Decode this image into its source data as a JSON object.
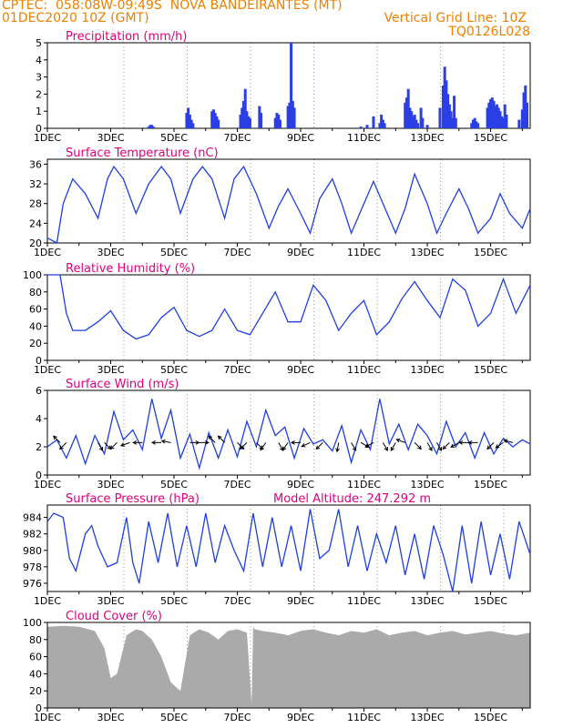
{
  "header": {
    "line1_left": "CPTEC:  058:08W-09:49S  NOVA BANDEIRANTES (MT)",
    "line2_left": "01DEC2020 10Z (GMT)",
    "line2_right": "Vertical Grid Line: 10Z",
    "line3_right": "TQ0126L028"
  },
  "colors": {
    "title": "#e0007a",
    "header": "#f08000",
    "series": "#1f3fe0",
    "bars": "#2b3fe6",
    "cloud": "#aaaaaa"
  },
  "x_ticks": [
    "1DEC",
    "3DEC",
    "5DEC",
    "7DEC",
    "9DEC",
    "11DEC",
    "13DEC",
    "15DEC"
  ],
  "chart_data": [
    {
      "type": "bar",
      "title": "Precipitation (mm/h)",
      "ylim": [
        0,
        5
      ],
      "yticks": [
        "0",
        "1",
        "2",
        "3",
        "4",
        "5"
      ],
      "x_range_days": [
        0,
        15.25
      ],
      "x": [
        3.2,
        3.25,
        3.3,
        3.35,
        4.4,
        4.45,
        4.5,
        4.55,
        4.6,
        5.2,
        5.25,
        5.3,
        5.35,
        5.4,
        6.1,
        6.15,
        6.2,
        6.25,
        6.3,
        6.35,
        6.4,
        6.7,
        6.75,
        7.2,
        7.25,
        7.3,
        7.35,
        7.6,
        7.65,
        7.7,
        7.75,
        7.8,
        9.9,
        10.1,
        10.3,
        10.5,
        10.55,
        10.6,
        10.65,
        11.3,
        11.35,
        11.4,
        11.45,
        11.5,
        11.55,
        11.6,
        11.65,
        11.7,
        11.8,
        11.85,
        12.0,
        12.4,
        12.5,
        12.55,
        12.6,
        12.65,
        12.7,
        12.75,
        12.8,
        12.85,
        12.9,
        13.4,
        13.45,
        13.5,
        13.55,
        13.6,
        13.9,
        13.95,
        14.0,
        14.05,
        14.1,
        14.15,
        14.2,
        14.25,
        14.3,
        14.35,
        14.4,
        14.45,
        14.5,
        14.9,
        15.0,
        15.05,
        15.1,
        15.15
      ],
      "values": [
        0.1,
        0.2,
        0.2,
        0.1,
        0.9,
        1.2,
        0.8,
        0.5,
        0.3,
        1.0,
        1.1,
        0.9,
        0.7,
        0.5,
        0.8,
        1.2,
        1.6,
        2.3,
        1.0,
        0.7,
        0.6,
        1.3,
        0.9,
        0.6,
        0.9,
        0.8,
        0.5,
        1.3,
        1.5,
        5.0,
        1.6,
        1.2,
        0.1,
        0.2,
        0.7,
        0.3,
        0.8,
        0.5,
        0.3,
        1.5,
        1.8,
        2.3,
        1.2,
        1.0,
        0.7,
        0.8,
        0.5,
        0.3,
        1.2,
        0.6,
        0.2,
        1.2,
        2.5,
        3.6,
        2.8,
        2.0,
        1.4,
        1.0,
        0.6,
        1.9,
        0.6,
        0.3,
        0.5,
        0.6,
        0.4,
        0.3,
        1.2,
        1.5,
        1.7,
        1.8,
        1.6,
        1.3,
        1.4,
        1.2,
        1.0,
        0.7,
        0.6,
        1.4,
        0.8,
        0.5,
        1.1,
        2.1,
        2.5,
        1.5
      ]
    },
    {
      "type": "line",
      "title": "Surface Temperature (nC)",
      "ylim": [
        20,
        37
      ],
      "yticks": [
        "20",
        "24",
        "28",
        "32",
        "36"
      ],
      "x": [
        0,
        0.3,
        0.5,
        0.8,
        1.2,
        1.6,
        1.9,
        2.1,
        2.4,
        2.8,
        3.2,
        3.6,
        3.9,
        4.2,
        4.6,
        4.9,
        5.2,
        5.6,
        5.9,
        6.2,
        6.6,
        7.0,
        7.3,
        7.6,
        8.0,
        8.3,
        8.6,
        9.0,
        9.3,
        9.6,
        10.0,
        10.3,
        10.6,
        11.0,
        11.3,
        11.6,
        12.0,
        12.3,
        12.6,
        13.0,
        13.3,
        13.6,
        14.0,
        14.3,
        14.6,
        15.0,
        15.25
      ],
      "values": [
        21,
        20,
        28,
        33,
        30,
        25,
        33,
        35.5,
        33,
        26,
        32,
        35.5,
        33,
        26,
        33,
        35.5,
        33,
        25,
        33,
        35.5,
        30,
        23,
        27.5,
        31,
        26,
        22,
        29,
        33,
        28,
        22,
        28,
        32.5,
        28,
        22,
        27,
        34,
        28,
        22,
        26,
        31,
        27,
        22,
        25,
        30,
        26,
        23,
        27
      ]
    },
    {
      "type": "line",
      "title": "Relative Humidity (%)",
      "ylim": [
        0,
        100
      ],
      "yticks": [
        "0",
        "20",
        "40",
        "60",
        "80",
        "100"
      ],
      "x": [
        0,
        0.4,
        0.6,
        0.8,
        1.2,
        1.6,
        2.0,
        2.4,
        2.8,
        3.2,
        3.6,
        4.0,
        4.4,
        4.8,
        5.2,
        5.6,
        6.0,
        6.4,
        6.8,
        7.2,
        7.6,
        8.0,
        8.4,
        8.8,
        9.2,
        9.6,
        10.0,
        10.4,
        10.8,
        11.2,
        11.6,
        12.0,
        12.4,
        12.8,
        13.2,
        13.6,
        14.0,
        14.4,
        14.8,
        15.25
      ],
      "values": [
        100,
        100,
        55,
        35,
        35,
        45,
        58,
        35,
        25,
        30,
        50,
        62,
        35,
        28,
        35,
        60,
        35,
        30,
        55,
        80,
        45,
        45,
        88,
        70,
        35,
        55,
        70,
        30,
        45,
        72,
        92,
        70,
        50,
        95,
        82,
        40,
        55,
        95,
        55,
        88
      ]
    },
    {
      "type": "line",
      "title": "Surface Wind (m/s)",
      "ylim": [
        0,
        6
      ],
      "yticks": [
        "0",
        "2",
        "4",
        "6"
      ],
      "x": [
        0,
        0.3,
        0.6,
        0.9,
        1.2,
        1.5,
        1.8,
        2.1,
        2.4,
        2.7,
        3.0,
        3.3,
        3.6,
        3.9,
        4.2,
        4.5,
        4.8,
        5.1,
        5.4,
        5.7,
        6.0,
        6.3,
        6.6,
        6.9,
        7.2,
        7.5,
        7.8,
        8.1,
        8.4,
        8.7,
        9.0,
        9.3,
        9.6,
        9.9,
        10.2,
        10.5,
        10.8,
        11.1,
        11.4,
        11.7,
        12.0,
        12.3,
        12.6,
        12.9,
        13.2,
        13.5,
        13.8,
        14.1,
        14.4,
        14.7,
        15.0,
        15.25
      ],
      "values": [
        2,
        2.5,
        1.2,
        2.8,
        0.8,
        2.8,
        1.5,
        4.5,
        2.5,
        3.2,
        1.8,
        5.4,
        2.6,
        4.6,
        1.2,
        2.9,
        0.5,
        3.0,
        1.2,
        3.2,
        1.3,
        3.8,
        2.0,
        4.6,
        2.8,
        3.4,
        1.2,
        3.3,
        2.2,
        2.5,
        1.7,
        3.5,
        0.9,
        3.2,
        1.8,
        5.4,
        2.2,
        3.6,
        1.8,
        3.6,
        2.8,
        1.5,
        3.8,
        2.0,
        3.0,
        1.2,
        3.0,
        1.5,
        2.6,
        2.0,
        2.5,
        2.2
      ],
      "wind_vectors_days": [
        0.4,
        0.6,
        1.6,
        1.8,
        2.2,
        2.6,
        3.0,
        3.6,
        3.9,
        4.5,
        4.8,
        5.3,
        5.6,
        6.0,
        6.3,
        6.6,
        6.9,
        7.3,
        7.6,
        8.0,
        8.3,
        8.7,
        9.2,
        9.6,
        9.9,
        10.3,
        10.6,
        11.0,
        11.3,
        11.6,
        12.0,
        12.3,
        12.7,
        13.0,
        13.3,
        13.6,
        14.1,
        14.4,
        14.7
      ],
      "wind_vector_angles_deg": [
        135,
        225,
        300,
        315,
        225,
        200,
        180,
        180,
        170,
        0,
        0,
        135,
        135,
        315,
        225,
        315,
        235,
        300,
        235,
        180,
        205,
        225,
        260,
        300,
        330,
        210,
        300,
        240,
        160,
        315,
        300,
        300,
        225,
        210,
        180,
        180,
        225,
        215,
        165
      ]
    },
    {
      "type": "line",
      "title": "Surface Pressure (hPa)",
      "annotation": "Model Altitude: 247.292  m",
      "ylim": [
        975,
        985.5
      ],
      "yticks": [
        "976",
        "978",
        "980",
        "982",
        "984"
      ],
      "x": [
        0,
        0.2,
        0.5,
        0.7,
        0.9,
        1.2,
        1.4,
        1.6,
        1.9,
        2.2,
        2.5,
        2.7,
        2.9,
        3.2,
        3.5,
        3.8,
        4.1,
        4.4,
        4.7,
        5.0,
        5.3,
        5.6,
        5.9,
        6.2,
        6.5,
        6.8,
        7.1,
        7.4,
        7.7,
        8.0,
        8.3,
        8.6,
        8.9,
        9.2,
        9.5,
        9.8,
        10.1,
        10.4,
        10.7,
        11.0,
        11.3,
        11.6,
        11.9,
        12.2,
        12.5,
        12.8,
        13.1,
        13.4,
        13.7,
        14.0,
        14.3,
        14.6,
        14.9,
        15.25
      ],
      "values": [
        983.5,
        984.5,
        984,
        979,
        977.5,
        982,
        983,
        980.5,
        978,
        978.5,
        984,
        978.5,
        976,
        983.5,
        978.5,
        984.5,
        978,
        983,
        978,
        984.5,
        978.5,
        983,
        980,
        977.5,
        984.5,
        978,
        984,
        978,
        983,
        977.5,
        985,
        979,
        980,
        985,
        978,
        983,
        977.5,
        982,
        978.5,
        983,
        977,
        982,
        976.5,
        983,
        979.5,
        975,
        983,
        976,
        983.5,
        977,
        982,
        976.5,
        983.5,
        979.5
      ]
    },
    {
      "type": "area",
      "title": "Cloud Cover (%)",
      "ylim": [
        0,
        100
      ],
      "yticks": [
        "0",
        "20",
        "40",
        "60",
        "80",
        "100"
      ],
      "x": [
        0,
        0.5,
        1.0,
        1.5,
        1.8,
        2.0,
        2.2,
        2.5,
        2.8,
        3.0,
        3.3,
        3.6,
        3.9,
        4.2,
        4.5,
        4.8,
        5.1,
        5.4,
        5.7,
        6.0,
        6.3,
        6.45,
        6.5,
        6.55,
        6.8,
        7.2,
        7.6,
        8.0,
        8.4,
        8.8,
        9.2,
        9.6,
        10.0,
        10.4,
        10.8,
        11.2,
        11.6,
        12.0,
        12.4,
        12.8,
        13.2,
        13.6,
        14.0,
        14.4,
        14.8,
        15.25
      ],
      "values": [
        95,
        96,
        95,
        90,
        70,
        35,
        40,
        85,
        92,
        90,
        80,
        60,
        30,
        20,
        85,
        92,
        88,
        80,
        90,
        92,
        88,
        5,
        95,
        92,
        90,
        88,
        85,
        90,
        92,
        88,
        85,
        90,
        88,
        92,
        85,
        88,
        90,
        85,
        88,
        90,
        86,
        88,
        90,
        87,
        85,
        88
      ]
    }
  ]
}
